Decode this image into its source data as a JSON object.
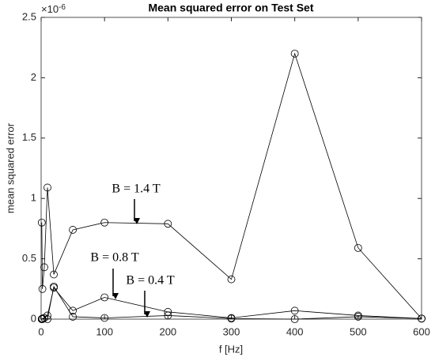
{
  "chart_data": {
    "type": "line",
    "title": "Mean squared error on Test Set",
    "x_label": "f [Hz]",
    "y_label": "mean squared error",
    "y_multiplier": {
      "base": "×10",
      "exponent": "-6"
    },
    "x": [
      1,
      2,
      5,
      10,
      20,
      50,
      100,
      200,
      300,
      400,
      500,
      600
    ],
    "series": [
      {
        "name": "B = 1.4 T",
        "color": "#000000",
        "values": [
          0.8,
          0.25,
          0.43,
          1.09,
          0.37,
          0.74,
          0.8,
          0.79,
          0.33,
          2.2,
          0.59,
          0.005
        ]
      },
      {
        "name": "B = 0.8 T",
        "color": "#000000",
        "values": [
          0.0,
          0.005,
          0.01,
          0.03,
          0.26,
          0.07,
          0.18,
          0.06,
          0.01,
          0.07,
          0.03,
          0.005
        ]
      },
      {
        "name": "B = 0.4 T",
        "color": "#000000",
        "values": [
          0.0,
          0.0,
          0.01,
          0.0,
          0.27,
          0.02,
          0.01,
          0.03,
          0.005,
          0.0,
          0.02,
          0.005
        ]
      }
    ],
    "xlim": [
      0,
      600
    ],
    "xticks": [
      0,
      100,
      200,
      300,
      400,
      500,
      600
    ],
    "ylim": [
      0,
      2.5
    ],
    "yticks": [
      0,
      0.5,
      1,
      1.5,
      2,
      2.5
    ],
    "grid": false
  }
}
